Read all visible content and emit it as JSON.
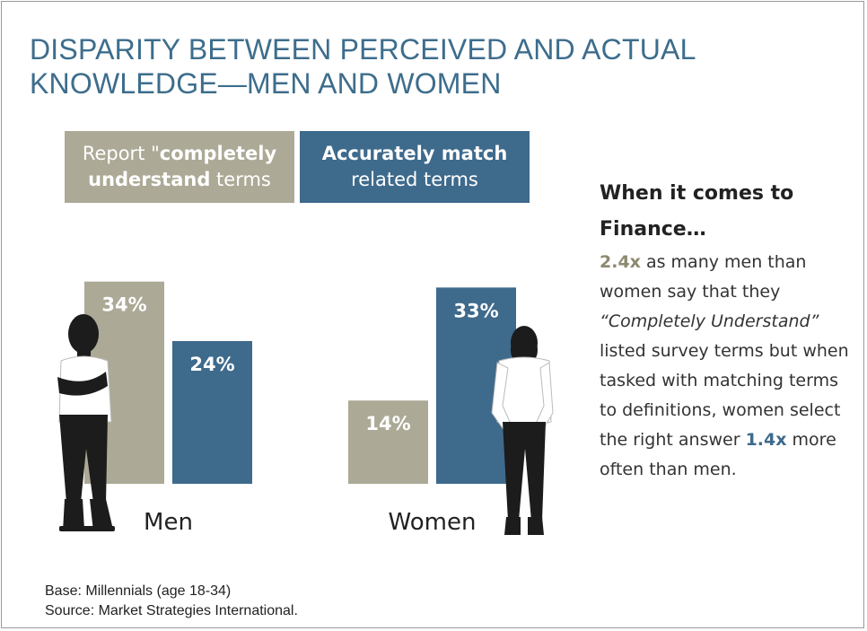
{
  "title": "DISPARITY BETWEEN PERCEIVED AND ACTUAL KNOWLEDGE—MEN AND WOMEN",
  "legend": {
    "report": {
      "prefix": "Report \"",
      "bold": "completely understand",
      "suffix": " terms"
    },
    "match": {
      "bold": "Accurately match",
      "suffix": "related terms"
    }
  },
  "colors": {
    "report": "#aca996",
    "match": "#3e6a8c",
    "title": "#3d6d8c",
    "figure": "#1c1c1c"
  },
  "chart_data": {
    "type": "bar",
    "categories": [
      "Men",
      "Women"
    ],
    "series": [
      {
        "name": "Report \"completely understand terms",
        "values": [
          34,
          14
        ],
        "labels": [
          "34%",
          "14%"
        ]
      },
      {
        "name": "Accurately match related terms",
        "values": [
          24,
          33
        ],
        "labels": [
          "24%",
          "33%"
        ]
      }
    ],
    "xlabel": "",
    "ylabel": "",
    "ylim": [
      0,
      40
    ],
    "grid": false,
    "legend_position": "top"
  },
  "side_text": {
    "heading_line1": "When it comes to",
    "heading_line2": "Finance…",
    "stat1": "2.4x",
    "line1": " as many men than women say that they ",
    "quote": "“Completely Understand”",
    "line2": " listed survey terms but when tasked with matching terms to definitions, women select the right answer ",
    "stat2": "1.4x",
    "line3": " more often than men."
  },
  "footnote": {
    "base": "Base: Millennials (age 18-34)",
    "source": "Source: Market Strategies International."
  },
  "icons": {
    "men_figure": "man-silhouette-icon",
    "women_figure": "woman-silhouette-icon"
  }
}
